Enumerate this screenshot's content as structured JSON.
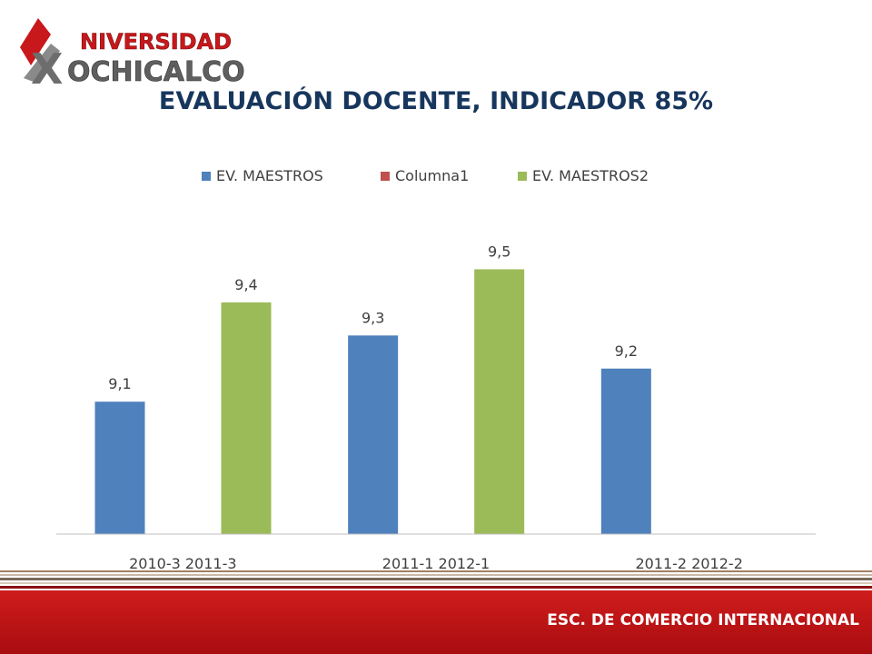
{
  "header": {
    "logo_line1": "NIVERSIDAD",
    "logo_line2": "OCHICALCO",
    "logo_mark": "X",
    "title": "EVALUACIÓN DOCENTE, INDICADOR 85%"
  },
  "footer": {
    "label": "ESC. DE COMERCIO INTERNACIONAL"
  },
  "colors": {
    "brand_red": "#c8181c",
    "title_navy": "#17365d",
    "series_blue": "#4f81bd",
    "series_red": "#c0504d",
    "series_green": "#9bbb59"
  },
  "chart_data": {
    "type": "bar",
    "title": "",
    "legend_position": "top",
    "grid": false,
    "ylim": [
      8.7,
      9.6
    ],
    "categories": [
      "2010-3 2011-3",
      "2011-1 2012-1",
      "2011-2 2012-2"
    ],
    "series": [
      {
        "name": "EV. MAESTROS",
        "color": "#4f81bd",
        "values": [
          9.1,
          9.3,
          9.2
        ],
        "labels": [
          "9,1",
          "9,3",
          "9,2"
        ]
      },
      {
        "name": "Columna1",
        "color": "#c0504d",
        "values": [
          null,
          null,
          null
        ],
        "labels": [
          "",
          "",
          ""
        ]
      },
      {
        "name": "EV. MAESTROS2",
        "color": "#9bbb59",
        "values": [
          9.4,
          9.5,
          null
        ],
        "labels": [
          "9,4",
          "9,5",
          ""
        ]
      }
    ]
  }
}
